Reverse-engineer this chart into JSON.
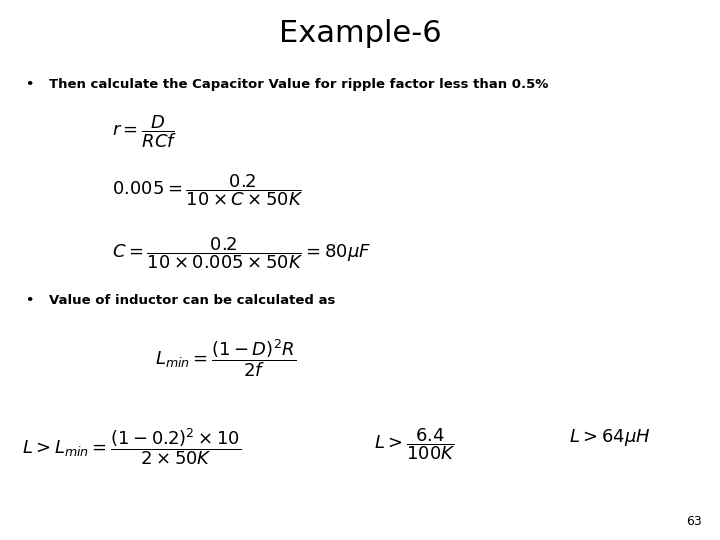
{
  "title": "Example-6",
  "title_fontsize": 22,
  "bg_color": "#ffffff",
  "text_color": "#000000",
  "bullet1": "Then calculate the Capacitor Value for ripple factor less than 0.5%",
  "bullet2": "Value of inductor can be calculated as",
  "page_num": "63",
  "bullet_fontsize": 9.5,
  "eq_fontsize": 13
}
